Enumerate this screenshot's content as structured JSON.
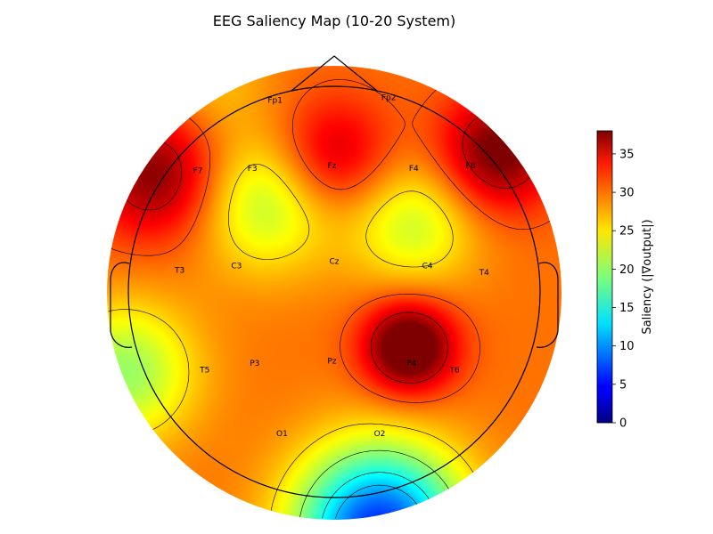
{
  "chart_data": {
    "type": "heatmap",
    "title": "EEG Saliency Map (10-20 System)",
    "colorbar": {
      "label": "Saliency (|∇output|)",
      "vmin": 0,
      "vmax": 38,
      "ticks": [
        0,
        5,
        10,
        15,
        20,
        25,
        30,
        35
      ],
      "colormap": "jet"
    },
    "electrodes": [
      {
        "name": "Fp1",
        "x": -0.26,
        "y": 0.85
      },
      {
        "name": "Fp2",
        "x": 0.24,
        "y": 0.86
      },
      {
        "name": "F7",
        "x": -0.6,
        "y": 0.54
      },
      {
        "name": "F3",
        "x": -0.36,
        "y": 0.55
      },
      {
        "name": "Fz",
        "x": -0.01,
        "y": 0.56
      },
      {
        "name": "F4",
        "x": 0.35,
        "y": 0.55
      },
      {
        "name": "F8",
        "x": 0.6,
        "y": 0.56
      },
      {
        "name": "T3",
        "x": -0.68,
        "y": 0.1
      },
      {
        "name": "C3",
        "x": -0.43,
        "y": 0.12
      },
      {
        "name": "Cz",
        "x": 0.0,
        "y": 0.14
      },
      {
        "name": "C4",
        "x": 0.41,
        "y": 0.12
      },
      {
        "name": "T4",
        "x": 0.66,
        "y": 0.09
      },
      {
        "name": "T5",
        "x": -0.57,
        "y": -0.34
      },
      {
        "name": "P3",
        "x": -0.35,
        "y": -0.31
      },
      {
        "name": "Pz",
        "x": -0.01,
        "y": -0.3
      },
      {
        "name": "P4",
        "x": 0.34,
        "y": -0.31
      },
      {
        "name": "T6",
        "x": 0.53,
        "y": -0.34
      },
      {
        "name": "O1",
        "x": -0.23,
        "y": -0.62
      },
      {
        "name": "O2",
        "x": 0.2,
        "y": -0.62
      }
    ],
    "saliency_components": [
      {
        "x": 0.33,
        "y": -0.24,
        "amp": 13.0,
        "sigma": 0.14
      },
      {
        "x": -0.01,
        "y": 0.6,
        "amp": 7.0,
        "sigma": 0.18
      },
      {
        "x": -0.78,
        "y": 0.52,
        "amp": 9.0,
        "sigma": 0.2
      },
      {
        "x": 0.72,
        "y": 0.62,
        "amp": 10.0,
        "sigma": 0.18
      },
      {
        "x": -0.3,
        "y": 0.4,
        "amp": -8.0,
        "sigma": 0.22
      },
      {
        "x": 0.35,
        "y": 0.3,
        "amp": -7.0,
        "sigma": 0.2
      },
      {
        "x": 0.2,
        "y": -1.05,
        "amp": -23.0,
        "sigma": 0.26
      },
      {
        "x": -0.92,
        "y": -0.35,
        "amp": -9.0,
        "sigma": 0.22
      },
      {
        "x": -0.55,
        "y": 0.95,
        "amp": -3.0,
        "sigma": 0.18
      }
    ],
    "saliency_baseline": 29.0,
    "contour_levels": [
      12,
      15,
      20,
      25,
      30,
      35
    ]
  }
}
